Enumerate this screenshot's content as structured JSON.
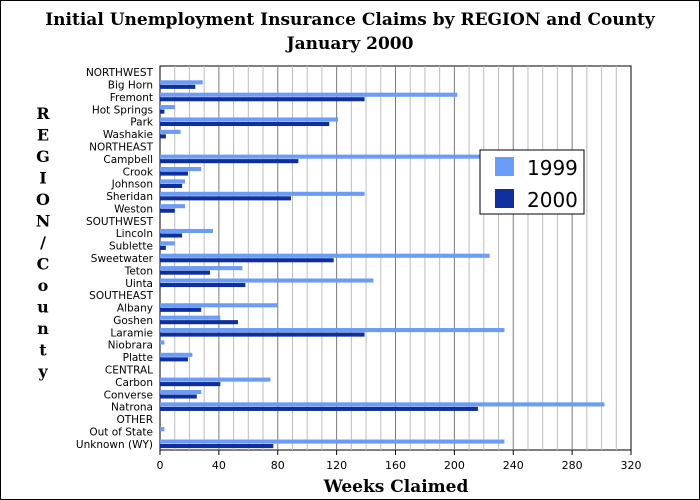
{
  "chart_data": {
    "type": "bar",
    "orientation": "horizontal",
    "title": "Initial Unemployment Insurance Claims by REGION and County",
    "subtitle": "January 2000",
    "xlabel": "Weeks Claimed",
    "ylabel": "REGION/County",
    "xlim": [
      0,
      320
    ],
    "xticks": [
      0,
      40,
      80,
      120,
      160,
      200,
      240,
      280,
      320
    ],
    "grid": "vertical",
    "legend_position": "right",
    "colors": {
      "1999": "#6a9cf8",
      "2000": "#0e2f9c"
    },
    "categories": [
      "NORTHWEST",
      "Big Horn",
      "Fremont",
      "Hot Springs",
      "Park",
      "Washakie",
      "NORTHEAST",
      "Campbell",
      "Crook",
      "Johnson",
      "Sheridan",
      "Weston",
      "SOUTHWEST",
      "Lincoln",
      "Sublette",
      "Sweetwater",
      "Teton",
      "Uinta",
      "SOUTHEAST",
      "Albany",
      "Goshen",
      "Laramie",
      "Niobrara",
      "Platte",
      "CENTRAL",
      "Carbon",
      "Converse",
      "Natrona",
      "OTHER",
      "Out of State",
      "Unknown (WY)"
    ],
    "series": [
      {
        "name": "1999",
        "values": [
          0,
          29,
          202,
          10,
          121,
          14,
          0,
          232,
          28,
          17,
          139,
          17,
          0,
          36,
          10,
          224,
          56,
          145,
          0,
          80,
          41,
          234,
          3,
          22,
          0,
          75,
          28,
          302,
          0,
          3,
          234
        ]
      },
      {
        "name": "2000",
        "values": [
          0,
          24,
          139,
          3,
          115,
          4,
          0,
          94,
          19,
          15,
          89,
          10,
          0,
          15,
          4,
          118,
          34,
          58,
          0,
          28,
          53,
          139,
          0,
          19,
          0,
          41,
          25,
          216,
          0,
          0,
          77
        ]
      }
    ]
  }
}
